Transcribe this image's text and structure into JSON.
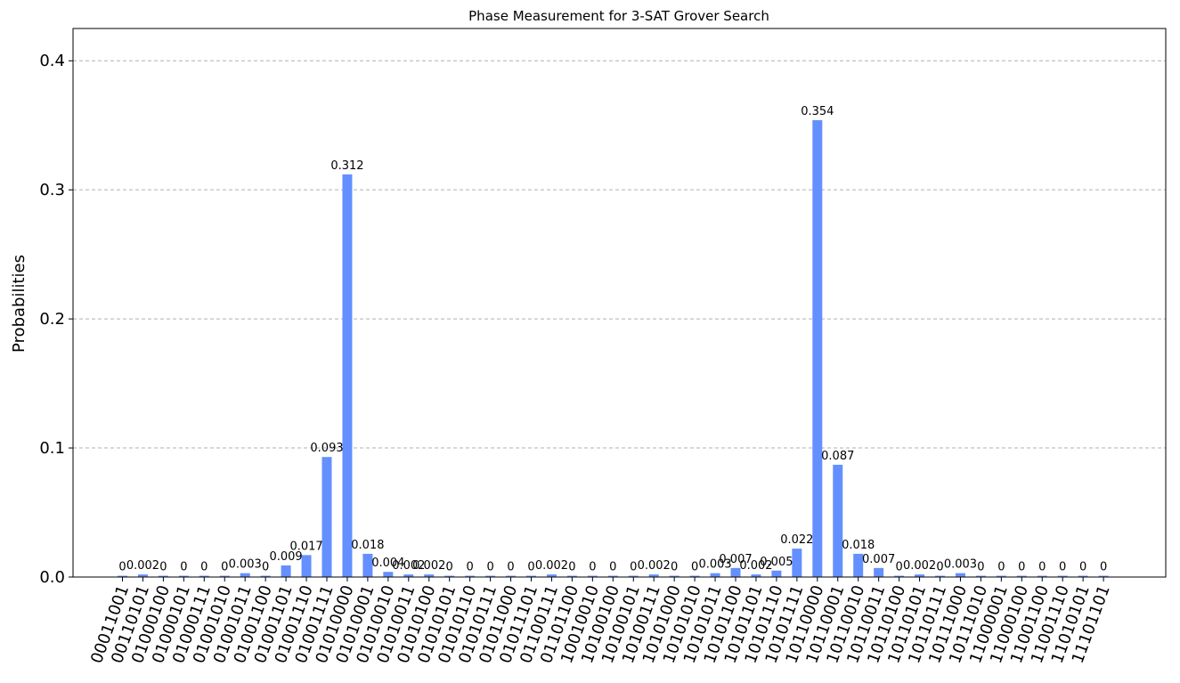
{
  "chart_data": {
    "type": "bar",
    "title": "Phase Measurement for 3-SAT Grover Search",
    "xlabel": "",
    "ylabel": "Probabilities",
    "ylim": [
      0,
      0.425
    ],
    "yticks": [
      "0.0",
      "0.1",
      "0.2",
      "0.3",
      "0.4"
    ],
    "ytick_values": [
      0,
      0.1,
      0.2,
      0.3,
      0.4
    ],
    "grid": "horizontal dashed",
    "bar_color": "#648fff",
    "categories": [
      "00011001",
      "00110101",
      "01000100",
      "01000101",
      "01000111",
      "01001010",
      "01001011",
      "01001100",
      "01001101",
      "01001110",
      "01001111",
      "01010000",
      "01010001",
      "01010010",
      "01010011",
      "01010100",
      "01010101",
      "01010110",
      "01010111",
      "01011000",
      "01011101",
      "01100111",
      "01101100",
      "10010010",
      "10100100",
      "10100101",
      "10100111",
      "10101000",
      "10101010",
      "10101011",
      "10101100",
      "10101101",
      "10101110",
      "10101111",
      "10110000",
      "10110001",
      "10110010",
      "10110011",
      "10110100",
      "10110101",
      "10110111",
      "10111000",
      "10111010",
      "11000001",
      "11000100",
      "11001100",
      "11001110",
      "11010101",
      "11101101"
    ],
    "values": [
      0.001,
      0.002,
      0.001,
      0.001,
      0.001,
      0.001,
      0.003,
      0.001,
      0.009,
      0.017,
      0.093,
      0.312,
      0.018,
      0.004,
      0.002,
      0.002,
      0.001,
      0.001,
      0.001,
      0.001,
      0.001,
      0.002,
      0.001,
      0.001,
      0.001,
      0.001,
      0.002,
      0.001,
      0.001,
      0.003,
      0.007,
      0.002,
      0.005,
      0.022,
      0.354,
      0.087,
      0.018,
      0.007,
      0.001,
      0.002,
      0.001,
      0.003,
      0.001,
      0.001,
      0.001,
      0.001,
      0.001,
      0.001,
      0.001
    ],
    "labels": [
      "0",
      "0.002",
      "0",
      "0",
      "0",
      "0",
      "0.003",
      "0",
      "0.009",
      "0.017",
      "0.093",
      "0.312",
      "0.018",
      "0.004",
      "0.002",
      "0.002",
      "0",
      "0",
      "0",
      "0",
      "0",
      "0.002",
      "0",
      "0",
      "0",
      "0",
      "0.002",
      "0",
      "0",
      "0.003",
      "0.007",
      "0.002",
      "0.005",
      "0.022",
      "0.354",
      "0.087",
      "0.018",
      "0.007",
      "0",
      "0.002",
      "0",
      "0.003",
      "0",
      "0",
      "0",
      "0",
      "0",
      "0",
      "0"
    ]
  }
}
